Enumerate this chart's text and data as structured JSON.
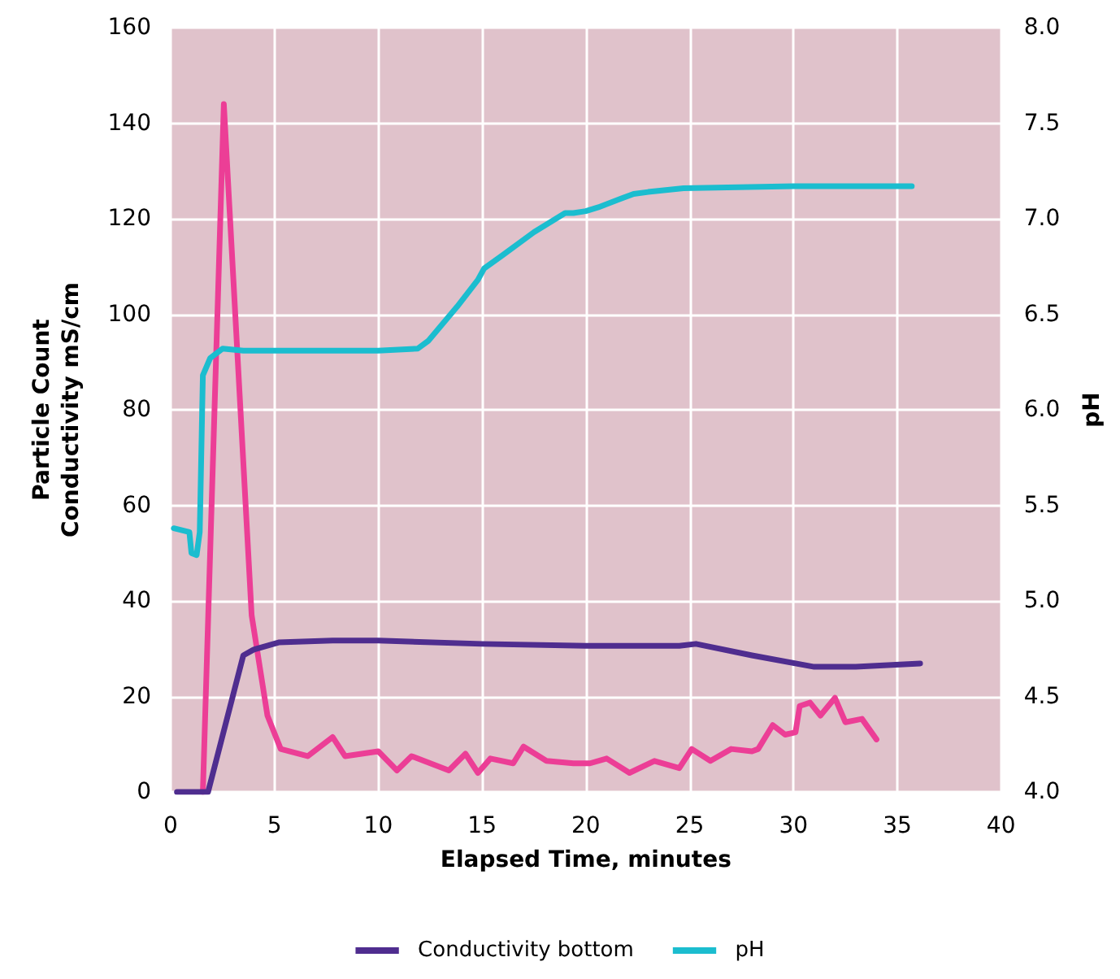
{
  "chart_data": {
    "type": "line",
    "xlabel": "Elapsed Time, minutes",
    "ylabel": "Particle Count\nConductivity mS/cm",
    "y2label": "pH",
    "xlim": [
      0,
      40
    ],
    "xticks": [
      0,
      5,
      10,
      15,
      20,
      25,
      30,
      35,
      40
    ],
    "ylim": [
      0,
      160
    ],
    "yticks": [
      0,
      20,
      40,
      60,
      80,
      100,
      120,
      140,
      160
    ],
    "y2lim": [
      4,
      8
    ],
    "y2ticks": [
      {
        "value": 4,
        "label": "4.0"
      },
      {
        "value": 4.5,
        "label": "4.5"
      },
      {
        "value": 5,
        "label": "5.0"
      },
      {
        "value": 5.5,
        "label": "5.5"
      },
      {
        "value": 6,
        "label": "6.0"
      },
      {
        "value": 6.5,
        "label": "6.5"
      },
      {
        "value": 7,
        "label": "7.0"
      },
      {
        "value": 7.5,
        "label": "7.5"
      },
      {
        "value": 8,
        "label": "8.0"
      }
    ],
    "grid": true,
    "legend": "bottom",
    "marker": "none",
    "line_style": "solid",
    "series": [
      {
        "color": "#ec3e96",
        "x": [
          1.55,
          2.56,
          3.9,
          4.66,
          5.3,
          6.6,
          7.8,
          8.4,
          10,
          10.9,
          11.6,
          13.4,
          14.2,
          14.8,
          15.4,
          16.5,
          17,
          18.1,
          19.4,
          20.2,
          21,
          22.1,
          23.3,
          24.5,
          25.1,
          26,
          27,
          28,
          28.3,
          29,
          29.6,
          30.1,
          30.3,
          30.8,
          31.3,
          32,
          32.5,
          33.3,
          34
        ],
        "values": [
          0,
          144,
          37,
          16,
          9,
          7.5,
          11.5,
          7.5,
          8.5,
          4.5,
          7.5,
          4.5,
          8,
          4,
          7,
          6,
          9.5,
          6.5,
          6,
          6,
          7,
          4,
          6.5,
          5,
          9,
          6.5,
          9,
          8.5,
          9,
          14,
          12,
          12.5,
          18,
          18.7,
          16,
          19.7,
          14.6,
          15.3,
          11
        ]
      },
      {
        "name": "Conductivity bottom",
        "color": "#4f2d8f",
        "x": [
          0.3,
          1.8,
          3.5,
          4,
          5.2,
          7.8,
          10,
          15,
          20,
          24.5,
          25.3,
          28,
          31,
          33,
          36.1
        ],
        "values": [
          0,
          0,
          28.6,
          29.8,
          31.3,
          31.7,
          31.7,
          31,
          30.6,
          30.6,
          31,
          28.6,
          26.2,
          26.2,
          26.9
        ]
      },
      {
        "name": "pH",
        "color": "#1bbdcf",
        "axis": "y2",
        "x": [
          0.15,
          0.9,
          1.0,
          1.25,
          1.4,
          1.55,
          1.9,
          2.5,
          3.5,
          5.2,
          10,
          11.9,
          12.4,
          13.8,
          14.8,
          15.1,
          16,
          17.5,
          19,
          19.4,
          20,
          20.6,
          22.3,
          23,
          24.7,
          30,
          35.7
        ],
        "values": [
          5.38,
          5.36,
          5.25,
          5.24,
          5.36,
          6.18,
          6.27,
          6.32,
          6.31,
          6.31,
          6.31,
          6.32,
          6.36,
          6.54,
          6.68,
          6.74,
          6.81,
          6.93,
          7.03,
          7.03,
          7.04,
          7.06,
          7.13,
          7.14,
          7.16,
          7.17,
          7.17
        ]
      }
    ]
  }
}
